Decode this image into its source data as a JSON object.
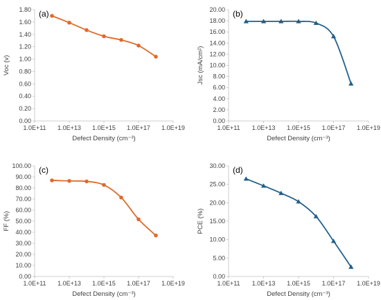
{
  "colors": {
    "orange": "#e06a2a",
    "blue": "#1f5f8b",
    "axis": "#bfbfbf",
    "text": "#404040"
  },
  "chart_data": [
    {
      "type": "line",
      "panel_label": "(a)",
      "xlabel": "Defect Density (cm⁻³)",
      "ylabel": "Voc (v)",
      "x_scale": "log",
      "x_exp_range": [
        11,
        19
      ],
      "x_ticks": [
        "1.0E+11",
        "1.0E+13",
        "1.0E+15",
        "1.0E+17",
        "1.0E+19"
      ],
      "y_ticks": [
        "0.00",
        "0.20",
        "0.40",
        "0.60",
        "0.80",
        "1.00",
        "1.20",
        "1.40",
        "1.60",
        "1.80"
      ],
      "ylim": [
        0,
        1.8
      ],
      "marker": "circle",
      "color": "#e06a2a",
      "series": [
        {
          "x": [
            1000000000000.0,
            10000000000000.0,
            100000000000000.0,
            1000000000000000.0,
            1e+16,
            1e+17,
            1e+18
          ],
          "values": [
            1.7,
            1.59,
            1.47,
            1.37,
            1.31,
            1.22,
            1.04
          ]
        }
      ]
    },
    {
      "type": "line",
      "panel_label": "(b)",
      "xlabel": "Defect Density (cm⁻³)",
      "ylabel": "Jsc (mA/cm²)",
      "x_scale": "log",
      "x_exp_range": [
        11,
        19
      ],
      "x_ticks": [
        "1.0E+11",
        "1.0E+13",
        "1.0E+15",
        "1.0E+17",
        "1.0E+19"
      ],
      "y_ticks": [
        "0.00",
        "2.00",
        "4.00",
        "6.00",
        "8.00",
        "10.00",
        "12.00",
        "14.00",
        "16.00",
        "18.00",
        "20.00"
      ],
      "ylim": [
        0,
        20
      ],
      "marker": "triangle",
      "color": "#1f5f8b",
      "series": [
        {
          "x": [
            1000000000000.0,
            10000000000000.0,
            100000000000000.0,
            1000000000000000.0,
            1e+16,
            1e+17,
            1e+18
          ],
          "values": [
            17.9,
            17.9,
            17.9,
            17.9,
            17.6,
            15.2,
            6.7
          ]
        }
      ]
    },
    {
      "type": "line",
      "panel_label": "(c)",
      "xlabel": "Defect Density (cm⁻³)",
      "ylabel": "FF (%)",
      "x_scale": "log",
      "x_exp_range": [
        11,
        19
      ],
      "x_ticks": [
        "1.0E+11",
        "1.0E+13",
        "1.0E+15",
        "1.0E+17",
        "1.0E+19"
      ],
      "y_ticks": [
        "0.00",
        "10.00",
        "20.00",
        "30.00",
        "40.00",
        "50.00",
        "60.00",
        "70.00",
        "80.00",
        "90.00",
        "100.00"
      ],
      "ylim": [
        0,
        100
      ],
      "marker": "circle",
      "color": "#e06a2a",
      "series": [
        {
          "x": [
            1000000000000.0,
            10000000000000.0,
            100000000000000.0,
            1000000000000000.0,
            1e+16,
            1e+17,
            1e+18
          ],
          "values": [
            86.9,
            86.4,
            86.0,
            82.8,
            71.4,
            51.7,
            37.1
          ]
        }
      ]
    },
    {
      "type": "line",
      "panel_label": "(d)",
      "xlabel": "Defect Density (cm⁻³)",
      "ylabel": "PCE (%)",
      "x_scale": "log",
      "x_exp_range": [
        11,
        19
      ],
      "x_ticks": [
        "1.0E+11",
        "1.0E+13",
        "1.0E+15",
        "1.0E+17",
        "1.0E+19"
      ],
      "y_ticks": [
        "0.00",
        "5.00",
        "10.00",
        "15.00",
        "20.00",
        "25.00",
        "30.00"
      ],
      "ylim": [
        0,
        30
      ],
      "marker": "triangle",
      "color": "#1f5f8b",
      "series": [
        {
          "x": [
            1000000000000.0,
            10000000000000.0,
            100000000000000.0,
            1000000000000000.0,
            1e+16,
            1e+17,
            1e+18
          ],
          "values": [
            26.5,
            24.6,
            22.6,
            20.3,
            16.3,
            9.6,
            2.6
          ]
        }
      ]
    }
  ]
}
